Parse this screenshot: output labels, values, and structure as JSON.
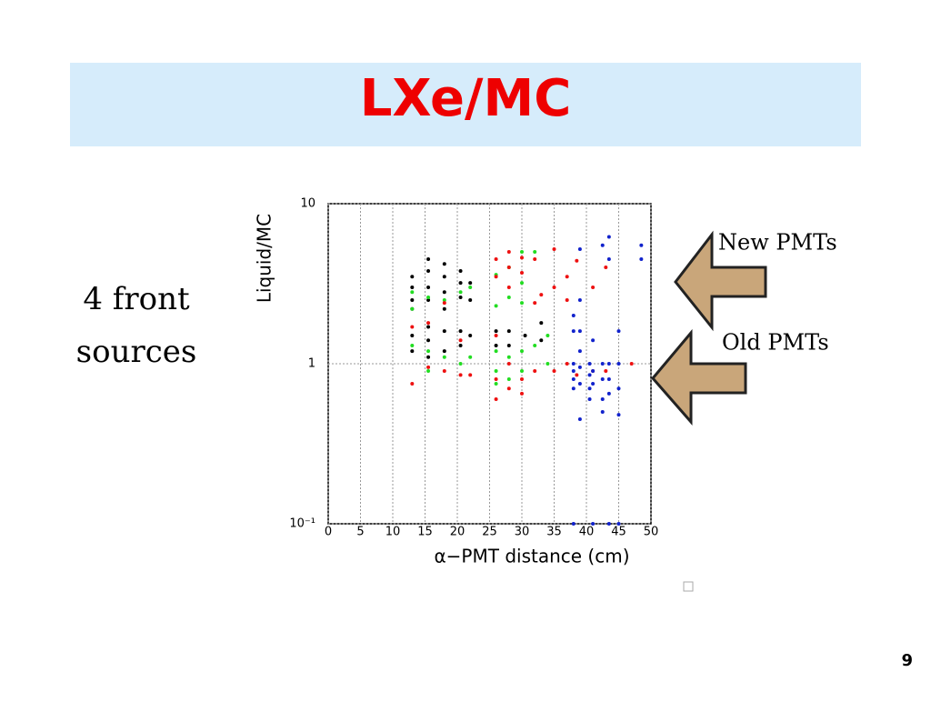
{
  "slide": {
    "title": "LXe/MC",
    "note": "4 front sources",
    "arrow_new": "New PMTs",
    "arrow_old": "Old PMTs",
    "page_number": "9"
  },
  "chart_data": {
    "type": "scatter",
    "x_label": "α−PMT distance (cm)",
    "y_label": "Liquid/MC",
    "xlim": [
      0,
      50
    ],
    "xticks": [
      0,
      5,
      10,
      15,
      20,
      25,
      30,
      35,
      40,
      45,
      50
    ],
    "ylim": [
      0.1,
      10
    ],
    "yticks": [
      {
        "value": 0.1,
        "label": "10⁻¹"
      },
      1,
      10
    ],
    "y_scale": "log",
    "grid": true,
    "series": [
      {
        "name": "black",
        "color": "#000000",
        "x": [
          13,
          13,
          13,
          13,
          13,
          13,
          15.5,
          15.5,
          15.5,
          15.5,
          15.5,
          15.5,
          15.5,
          18,
          18,
          18,
          18,
          18,
          18,
          20.5,
          20.5,
          20.5,
          20.5,
          20.5,
          22,
          22,
          22,
          26,
          26,
          28,
          28,
          30.5,
          33,
          33
        ],
        "values": [
          3.5,
          3,
          2.5,
          2.2,
          1.5,
          1.2,
          4.5,
          3.8,
          3,
          2.5,
          1.7,
          1.4,
          1.1,
          4.2,
          3.5,
          2.8,
          2.2,
          1.6,
          1.2,
          3.8,
          3.2,
          2.6,
          1.6,
          1.3,
          3.2,
          2.5,
          1.5,
          1.6,
          1.3,
          1.6,
          1.3,
          1.5,
          1.8,
          1.4
        ]
      },
      {
        "name": "green",
        "color": "#22dd22",
        "x": [
          13,
          13,
          13,
          15.5,
          15.5,
          15.5,
          18,
          18,
          20.5,
          20.5,
          22,
          22,
          26,
          26,
          26,
          26,
          26,
          28,
          28,
          28,
          28,
          30,
          30,
          30,
          30,
          30,
          32,
          32,
          34,
          34
        ],
        "values": [
          2.8,
          2.2,
          1.3,
          2.6,
          1.2,
          0.9,
          2.5,
          1.1,
          2.8,
          1.0,
          3.0,
          1.1,
          3.6,
          2.3,
          1.2,
          0.9,
          0.75,
          4,
          2.6,
          1.1,
          0.8,
          5,
          3.2,
          2.4,
          1.2,
          0.9,
          5,
          1.3,
          1.5,
          1.0
        ]
      },
      {
        "name": "red",
        "color": "#ee1111",
        "x": [
          13,
          13,
          15.5,
          15.5,
          18,
          18,
          20.5,
          20.5,
          22,
          26,
          26,
          26,
          26,
          26,
          28,
          28,
          28,
          28,
          28,
          30,
          30,
          30,
          30,
          32,
          32,
          32,
          33,
          35,
          35,
          35,
          37,
          37,
          37,
          38.5,
          38.5,
          41,
          41,
          43,
          43,
          47
        ],
        "values": [
          1.7,
          0.75,
          0.95,
          1.8,
          2.4,
          0.9,
          0.85,
          1.4,
          0.85,
          4.5,
          3.5,
          1.5,
          0.8,
          0.6,
          5,
          4,
          3,
          1.0,
          0.7,
          4.6,
          3.7,
          0.8,
          0.65,
          4.5,
          2.4,
          0.9,
          2.7,
          5.2,
          3,
          0.9,
          3.5,
          2.5,
          1.0,
          4.4,
          0.85,
          3,
          0.9,
          4.0,
          0.9,
          1.0
        ]
      },
      {
        "name": "blue",
        "color": "#1122cc",
        "x": [
          38,
          38,
          38,
          38,
          38,
          38,
          38,
          39,
          39,
          39,
          39,
          39,
          39,
          39,
          40.5,
          40.5,
          40.5,
          40.5,
          41,
          41,
          41,
          41,
          42.5,
          42.5,
          42.5,
          42.5,
          42.5,
          43.5,
          43.5,
          43.5,
          43.5,
          43.5,
          43.5,
          45,
          45,
          45,
          45,
          45,
          48.5,
          48.5
        ],
        "values": [
          2.0,
          1.6,
          1.0,
          0.9,
          0.8,
          0.7,
          0.1,
          5.2,
          2.5,
          1.6,
          1.2,
          0.95,
          0.75,
          0.45,
          1.0,
          0.85,
          0.7,
          0.6,
          1.4,
          0.9,
          0.75,
          0.1,
          5.5,
          1.0,
          0.8,
          0.6,
          0.5,
          6.2,
          4.5,
          1.0,
          0.8,
          0.65,
          0.1,
          1.6,
          1.0,
          0.7,
          0.48,
          0.1,
          5.5,
          4.5
        ]
      }
    ]
  }
}
